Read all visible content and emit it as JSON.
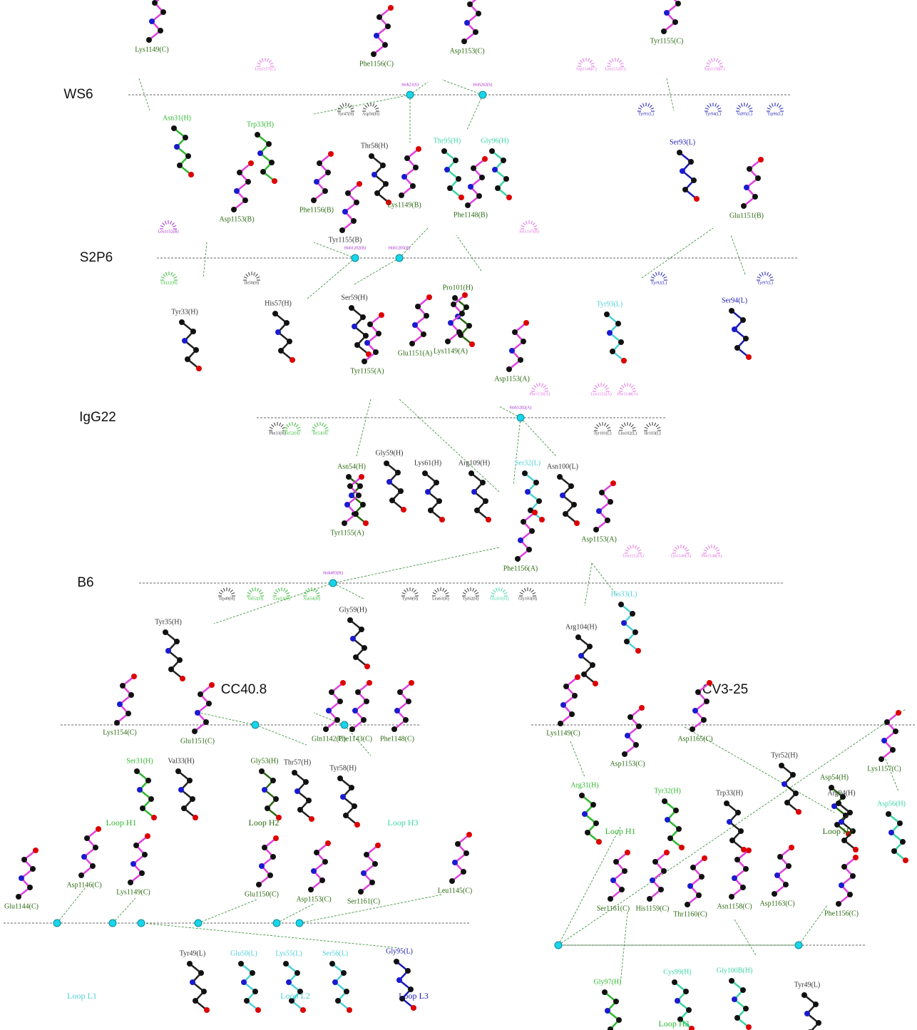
{
  "panels": [
    {
      "title": "WS6",
      "residues": [
        "Lys1149(C)",
        "Phe1156(C)",
        "Asp1153(C)",
        "Tyr1155(C)",
        "Asn31(H)",
        "Trp33(H)",
        "Thr58(H)",
        "Thr95(H)",
        "Gly96(H)",
        "Ser93(L)"
      ],
      "contacts": [
        "Hoh21(S)",
        "Hoh262(S)",
        "Leu1157(C)",
        "Asp1148(C)",
        "Leu1152(C)",
        "Xaa1158(C)",
        "Tyr47(H)",
        "Asp56(H)",
        "Tyr91(L)",
        "Tyr94(L)",
        "Val95(L)",
        "Trp96(L)"
      ]
    },
    {
      "title": "S2P6",
      "residues": [
        "Asp1153(B)",
        "Phe1156(B)",
        "Tyr1155(B)",
        "Lys1149(B)",
        "Phe1148(B)",
        "Glu1151(B)",
        "Tyr33(H)",
        "His57(H)",
        "Ser59(H)",
        "Pro101(H)",
        "Tyr93(L)",
        "Ser94(L)"
      ],
      "contacts": [
        "Leu1152(B)",
        "Hoh1202(B)",
        "Hoh1205(B)",
        "Ser1147(B)",
        "Glu32(H)",
        "Ile50(H)",
        "Tyr92(L)",
        "Tyr97(L)"
      ]
    },
    {
      "title": "IgG22",
      "residues": [
        "Glu1151(A)",
        "Lys1149(A)",
        "Tyr1155(A)",
        "Asp1153(A)",
        "Asn54(H)",
        "Gly59(H)",
        "Lys61(H)",
        "Arg109(H)",
        "Ser32(L)",
        "Asn100(L)"
      ],
      "contacts": [
        "Phe1156(A)",
        "Leu1152(A)",
        "Phe1148(A)",
        "Hoh1202(A)",
        "Phe33(H)",
        "Ile52(H)",
        "Ile53(H)",
        "Tyr101(L)",
        "Leu102(L)",
        "Ile103(L)"
      ]
    },
    {
      "title": "B6",
      "residues": [
        "Tyr1155(A)",
        "Asp1153(A)",
        "Phe1156(A)",
        "Tyr35(H)",
        "Gly59(H)",
        "Arg104(H)",
        "His33(L)"
      ],
      "contacts": [
        "Hoh493(H)",
        "Leu1152(A)",
        "Lys1149(A)",
        "Phe1148(A)",
        "Trp49(H)",
        "Val52(H)",
        "Leu53(H)",
        "Asn54(H)",
        "Tyr60(H)",
        "Leu61(H)",
        "Tyr62(H)",
        "Glu101(H)",
        "Gly103(H)"
      ]
    },
    {
      "title": "CC40.8",
      "residues": [
        "Lys1154(C)",
        "Glu1151(C)",
        "Gln1142(C)",
        "Phe1143(C)",
        "Phe1148(C)",
        "Ser31(H)",
        "Val33(H)",
        "Gly53(H)",
        "Thr57(H)",
        "Tyr58(H)",
        "Glu1144(C)",
        "Asp1146(C)",
        "Lys1149(C)",
        "Glu1150(C)",
        "Asp1153(C)",
        "Ser1161(C)",
        "Leu1145(C)",
        "Tyr49(L)",
        "Glu50(L)",
        "Lys55(L)",
        "Ser56(L)",
        "Gly95(L)"
      ],
      "loops": [
        "Loop H1",
        "Loop H2",
        "Loop H3",
        "Loop L1",
        "Loop L2",
        "Loop L3"
      ]
    },
    {
      "title": "CV3-25",
      "residues": [
        "Lys1149(C)",
        "Asp1165(C)",
        "Asp1153(C)",
        "Lys1157(C)",
        "Tyr52(H)",
        "Arg31(H)",
        "Tyr32(H)",
        "Trp33(H)",
        "Asp54(H)",
        "Arg94(H)",
        "Asp56(H)",
        "Ser1161(C)",
        "His1159(C)",
        "Thr1160(C)",
        "Asn1158(C)",
        "Asp1163(C)",
        "Phe1156(C)",
        "Gly97(H)",
        "Cys99(H)",
        "Gly100B(H)",
        "Tyr49(L)"
      ],
      "loops": [
        "Loop H1",
        "Loop H2",
        "Loop H3"
      ]
    }
  ]
}
